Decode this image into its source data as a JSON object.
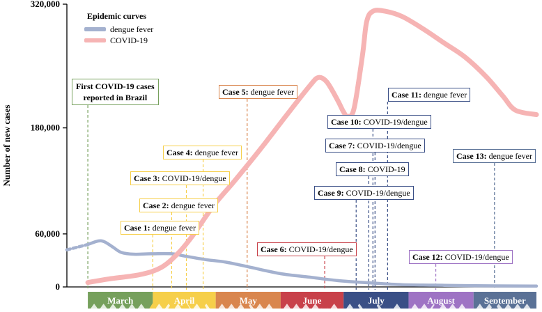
{
  "chart_data": {
    "type": "line",
    "title": "",
    "xlabel": "",
    "ylabel": "Number of new cases",
    "ylim": [
      0,
      320000
    ],
    "y_ticks": [
      {
        "value": 0,
        "label": "0"
      },
      {
        "value": 60000,
        "label": "60,000"
      },
      {
        "value": 180000,
        "label": "180,000"
      },
      {
        "value": 320000,
        "label": "320,000"
      }
    ],
    "x_unit": "day of year 2020 (Mar 1 = 0)",
    "xlim": [
      -10,
      214
    ],
    "months": [
      {
        "label": "March",
        "start": 0,
        "end": 31,
        "color": "#76a05c"
      },
      {
        "label": "April",
        "start": 31,
        "end": 61,
        "color": "#f6cf4a"
      },
      {
        "label": "May",
        "start": 61,
        "end": 92,
        "color": "#d9864e"
      },
      {
        "label": "June",
        "start": 92,
        "end": 122,
        "color": "#c8414a"
      },
      {
        "label": "July",
        "start": 122,
        "end": 153,
        "color": "#3a4f86"
      },
      {
        "label": "August",
        "start": 153,
        "end": 184,
        "color": "#9e73c4"
      },
      {
        "label": "September",
        "start": 184,
        "end": 214,
        "color": "#5a7196"
      }
    ],
    "legend": {
      "title": "Epidemic curves",
      "position": "top-left",
      "entries": [
        {
          "name": "dengue fever",
          "color": "#a4b1cf"
        },
        {
          "name": "COVID-19",
          "color": "#f6b4b4"
        }
      ]
    },
    "series": [
      {
        "name": "dengue fever",
        "color": "#a4b1cf",
        "dashed_prefix_until": 0,
        "points": [
          [
            -10,
            42000
          ],
          [
            -5,
            45000
          ],
          [
            0,
            48000
          ],
          [
            5,
            52000
          ],
          [
            8,
            51000
          ],
          [
            12,
            45000
          ],
          [
            16,
            39000
          ],
          [
            22,
            37000
          ],
          [
            30,
            37500
          ],
          [
            40,
            37500
          ],
          [
            46,
            35000
          ],
          [
            56,
            31000
          ],
          [
            66,
            28000
          ],
          [
            78,
            22000
          ],
          [
            92,
            15000
          ],
          [
            106,
            11000
          ],
          [
            120,
            7000
          ],
          [
            135,
            4500
          ],
          [
            150,
            2500
          ],
          [
            165,
            2000
          ],
          [
            180,
            1500
          ],
          [
            195,
            1200
          ],
          [
            214,
            1000
          ]
        ]
      },
      {
        "name": "COVID-19",
        "color": "#f6b4b4",
        "points": [
          [
            0,
            5000
          ],
          [
            10,
            9000
          ],
          [
            25,
            14000
          ],
          [
            35,
            22000
          ],
          [
            43,
            38000
          ],
          [
            50,
            58000
          ],
          [
            60,
            92000
          ],
          [
            70,
            120000
          ],
          [
            82,
            155000
          ],
          [
            95,
            195000
          ],
          [
            106,
            228000
          ],
          [
            110,
            237000
          ],
          [
            114,
            232000
          ],
          [
            119,
            212000
          ],
          [
            122,
            198000
          ],
          [
            124,
            193000
          ],
          [
            127,
            202000
          ],
          [
            131,
            262000
          ],
          [
            133,
            300000
          ],
          [
            136,
            312000
          ],
          [
            142,
            312000
          ],
          [
            150,
            306000
          ],
          [
            160,
            292000
          ],
          [
            170,
            276000
          ],
          [
            180,
            260000
          ],
          [
            190,
            238000
          ],
          [
            198,
            216000
          ],
          [
            204,
            200000
          ],
          [
            214,
            195000
          ]
        ]
      }
    ],
    "first_cases": {
      "lines": [
        "First COVID-19 cases",
        "reported in Brazil"
      ],
      "day": 0,
      "color": "#76a05c"
    },
    "cases": [
      {
        "bold": "Case 1:",
        "text": " dengue fever",
        "day": 31,
        "color": "#f6cf4a"
      },
      {
        "bold": "Case 2:",
        "text": " dengue fever",
        "day": 40,
        "color": "#f6cf4a"
      },
      {
        "bold": "Case 3:",
        "text": " COVID-19/dengue",
        "day": 47,
        "color": "#f6cf4a"
      },
      {
        "bold": "Case 4:",
        "text": " dengue fever",
        "day": 55,
        "color": "#f6cf4a"
      },
      {
        "bold": "Case 5:",
        "text": " dengue fever",
        "day": 76,
        "color": "#d9864e"
      },
      {
        "bold": "Case 6:",
        "text": " COVID-19/dengue",
        "day": 113,
        "color": "#c8414a"
      },
      {
        "bold": "Case 7:",
        "text": " COVID-19/dengue",
        "day": 137,
        "color": "#3a4f86"
      },
      {
        "bold": "Case 8:",
        "text": " COVID-19",
        "day": 134,
        "color": "#3a4f86"
      },
      {
        "bold": "Case 9:",
        "text": " COVID-19/dengue",
        "day": 128,
        "color": "#3a4f86"
      },
      {
        "bold": "Case 10:",
        "text": " COVID-19/dengue",
        "day": 136,
        "color": "#3a4f86"
      },
      {
        "bold": "Case 11:",
        "text": " dengue fever",
        "day": 143,
        "color": "#3a4f86"
      },
      {
        "bold": "Case 12:",
        "text": " COVID-19/dengue",
        "day": 166,
        "color": "#9e73c4"
      },
      {
        "bold": "Case 13:",
        "text": " dengue fever",
        "day": 194,
        "color": "#5a7196"
      }
    ],
    "grid": false
  }
}
